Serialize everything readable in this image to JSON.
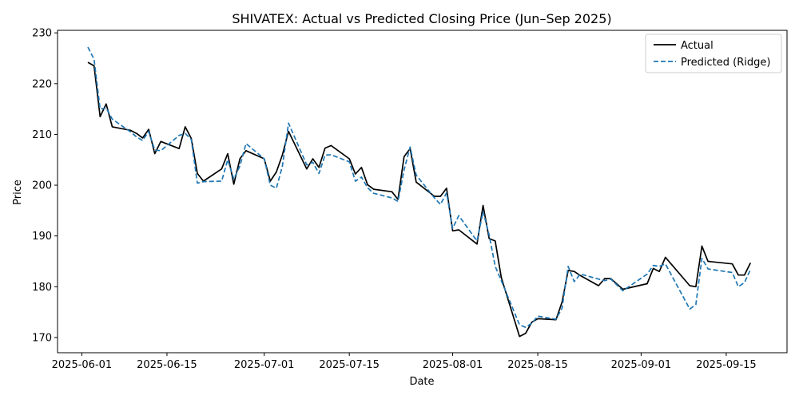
{
  "chart_data": {
    "type": "line",
    "title": "SHIVATEX: Actual vs Predicted Closing Price (Jun–Sep 2025)",
    "xlabel": "Date",
    "ylabel": "Price",
    "xlim": [
      "2025-05-28",
      "2025-09-25"
    ],
    "ylim": [
      167,
      230.5
    ],
    "x_ticks": [
      "2025-06-01",
      "2025-06-15",
      "2025-07-01",
      "2025-07-15",
      "2025-08-01",
      "2025-08-15",
      "2025-09-01",
      "2025-09-15"
    ],
    "y_ticks": [
      170,
      180,
      190,
      200,
      210,
      220,
      230
    ],
    "grid": false,
    "legend": {
      "position": "top-right",
      "entries": [
        "Actual",
        "Predicted (Ridge)"
      ]
    },
    "series": [
      {
        "name": "Actual",
        "color": "#000000",
        "style": "solid",
        "points": [
          [
            "2025-06-02",
            224.2
          ],
          [
            "2025-06-03",
            223.5
          ],
          [
            "2025-06-04",
            213.5
          ],
          [
            "2025-06-05",
            216.0
          ],
          [
            "2025-06-06",
            211.5
          ],
          [
            "2025-06-09",
            210.8
          ],
          [
            "2025-06-10",
            210.2
          ],
          [
            "2025-06-11",
            209.3
          ],
          [
            "2025-06-12",
            211.0
          ],
          [
            "2025-06-13",
            206.2
          ],
          [
            "2025-06-14",
            208.6
          ],
          [
            "2025-06-17",
            207.2
          ],
          [
            "2025-06-18",
            211.5
          ],
          [
            "2025-06-19",
            209.2
          ],
          [
            "2025-06-20",
            202.3
          ],
          [
            "2025-06-21",
            200.8
          ],
          [
            "2025-06-24",
            203.2
          ],
          [
            "2025-06-25",
            206.2
          ],
          [
            "2025-06-26",
            200.2
          ],
          [
            "2025-06-27",
            205.2
          ],
          [
            "2025-06-28",
            206.8
          ],
          [
            "2025-07-01",
            205.2
          ],
          [
            "2025-07-02",
            200.8
          ],
          [
            "2025-07-03",
            202.6
          ],
          [
            "2025-07-04",
            206.0
          ],
          [
            "2025-07-05",
            210.6
          ],
          [
            "2025-07-08",
            203.2
          ],
          [
            "2025-07-09",
            205.2
          ],
          [
            "2025-07-10",
            203.5
          ],
          [
            "2025-07-11",
            207.3
          ],
          [
            "2025-07-12",
            207.8
          ],
          [
            "2025-07-15",
            205.2
          ],
          [
            "2025-07-16",
            202.2
          ],
          [
            "2025-07-17",
            203.5
          ],
          [
            "2025-07-18",
            200.1
          ],
          [
            "2025-07-19",
            199.2
          ],
          [
            "2025-07-22",
            198.7
          ],
          [
            "2025-07-23",
            197.2
          ],
          [
            "2025-07-24",
            205.6
          ],
          [
            "2025-07-25",
            207.2
          ],
          [
            "2025-07-26",
            200.6
          ],
          [
            "2025-07-29",
            197.8
          ],
          [
            "2025-07-30",
            197.8
          ],
          [
            "2025-07-31",
            199.4
          ],
          [
            "2025-08-01",
            191.0
          ],
          [
            "2025-08-02",
            191.2
          ],
          [
            "2025-08-05",
            188.4
          ],
          [
            "2025-08-06",
            196.0
          ],
          [
            "2025-08-07",
            189.5
          ],
          [
            "2025-08-08",
            189.0
          ],
          [
            "2025-08-09",
            181.8
          ],
          [
            "2025-08-12",
            170.2
          ],
          [
            "2025-08-13",
            170.8
          ],
          [
            "2025-08-14",
            173.0
          ],
          [
            "2025-08-15",
            173.7
          ],
          [
            "2025-08-18",
            173.5
          ],
          [
            "2025-08-19",
            177.0
          ],
          [
            "2025-08-20",
            183.2
          ],
          [
            "2025-08-21",
            183.0
          ],
          [
            "2025-08-22",
            182.2
          ],
          [
            "2025-08-25",
            180.2
          ],
          [
            "2025-08-26",
            181.6
          ],
          [
            "2025-08-27",
            181.6
          ],
          [
            "2025-08-29",
            179.5
          ],
          [
            "2025-09-02",
            180.6
          ],
          [
            "2025-09-03",
            183.6
          ],
          [
            "2025-09-04",
            183.0
          ],
          [
            "2025-09-05",
            185.8
          ],
          [
            "2025-09-09",
            180.2
          ],
          [
            "2025-09-10",
            180.0
          ],
          [
            "2025-09-11",
            188.0
          ],
          [
            "2025-09-12",
            185.0
          ],
          [
            "2025-09-16",
            184.5
          ],
          [
            "2025-09-17",
            182.3
          ],
          [
            "2025-09-18",
            182.3
          ],
          [
            "2025-09-19",
            184.7
          ]
        ]
      },
      {
        "name": "Predicted (Ridge)",
        "color": "#1f77b4",
        "style": "dashed",
        "points": [
          [
            "2025-06-02",
            227.2
          ],
          [
            "2025-06-03",
            224.8
          ],
          [
            "2025-06-04",
            215.0
          ],
          [
            "2025-06-05",
            215.2
          ],
          [
            "2025-06-06",
            213.0
          ],
          [
            "2025-06-09",
            210.5
          ],
          [
            "2025-06-10",
            209.5
          ],
          [
            "2025-06-11",
            208.8
          ],
          [
            "2025-06-12",
            210.6
          ],
          [
            "2025-06-13",
            206.9
          ],
          [
            "2025-06-14",
            206.8
          ],
          [
            "2025-06-17",
            209.8
          ],
          [
            "2025-06-18",
            210.2
          ],
          [
            "2025-06-19",
            209.0
          ],
          [
            "2025-06-20",
            200.4
          ],
          [
            "2025-06-21",
            200.7
          ],
          [
            "2025-06-24",
            200.8
          ],
          [
            "2025-06-25",
            205.0
          ],
          [
            "2025-06-26",
            201.2
          ],
          [
            "2025-06-27",
            203.8
          ],
          [
            "2025-06-28",
            208.2
          ],
          [
            "2025-07-01",
            205.2
          ],
          [
            "2025-07-02",
            200.0
          ],
          [
            "2025-07-03",
            199.4
          ],
          [
            "2025-07-04",
            203.8
          ],
          [
            "2025-07-05",
            212.2
          ],
          [
            "2025-07-08",
            204.0
          ],
          [
            "2025-07-09",
            204.5
          ],
          [
            "2025-07-10",
            202.3
          ],
          [
            "2025-07-11",
            205.9
          ],
          [
            "2025-07-12",
            206.0
          ],
          [
            "2025-07-15",
            204.6
          ],
          [
            "2025-07-16",
            200.8
          ],
          [
            "2025-07-17",
            201.6
          ],
          [
            "2025-07-18",
            199.5
          ],
          [
            "2025-07-19",
            198.4
          ],
          [
            "2025-07-22",
            197.5
          ],
          [
            "2025-07-23",
            196.8
          ],
          [
            "2025-07-24",
            203.0
          ],
          [
            "2025-07-25",
            207.5
          ],
          [
            "2025-07-26",
            202.0
          ],
          [
            "2025-07-29",
            197.5
          ],
          [
            "2025-07-30",
            196.2
          ],
          [
            "2025-07-31",
            198.5
          ],
          [
            "2025-08-01",
            191.5
          ],
          [
            "2025-08-02",
            194.0
          ],
          [
            "2025-08-05",
            189.0
          ],
          [
            "2025-08-06",
            194.8
          ],
          [
            "2025-08-07",
            190.2
          ],
          [
            "2025-08-08",
            184.0
          ],
          [
            "2025-08-09",
            181.2
          ],
          [
            "2025-08-12",
            172.5
          ],
          [
            "2025-08-13",
            172.0
          ],
          [
            "2025-08-14",
            172.8
          ],
          [
            "2025-08-15",
            174.2
          ],
          [
            "2025-08-18",
            173.6
          ],
          [
            "2025-08-19",
            175.8
          ],
          [
            "2025-08-20",
            184.0
          ],
          [
            "2025-08-21",
            181.0
          ],
          [
            "2025-08-22",
            182.5
          ],
          [
            "2025-08-25",
            181.5
          ],
          [
            "2025-08-26",
            181.2
          ],
          [
            "2025-08-27",
            181.5
          ],
          [
            "2025-08-29",
            179.2
          ],
          [
            "2025-09-02",
            182.5
          ],
          [
            "2025-09-03",
            184.2
          ],
          [
            "2025-09-04",
            184.0
          ],
          [
            "2025-09-05",
            184.5
          ],
          [
            "2025-09-09",
            175.6
          ],
          [
            "2025-09-10",
            176.5
          ],
          [
            "2025-09-11",
            185.6
          ],
          [
            "2025-09-12",
            183.5
          ],
          [
            "2025-09-16",
            182.8
          ],
          [
            "2025-09-17",
            180.0
          ],
          [
            "2025-09-18",
            180.8
          ],
          [
            "2025-09-19",
            183.4
          ]
        ]
      }
    ]
  }
}
